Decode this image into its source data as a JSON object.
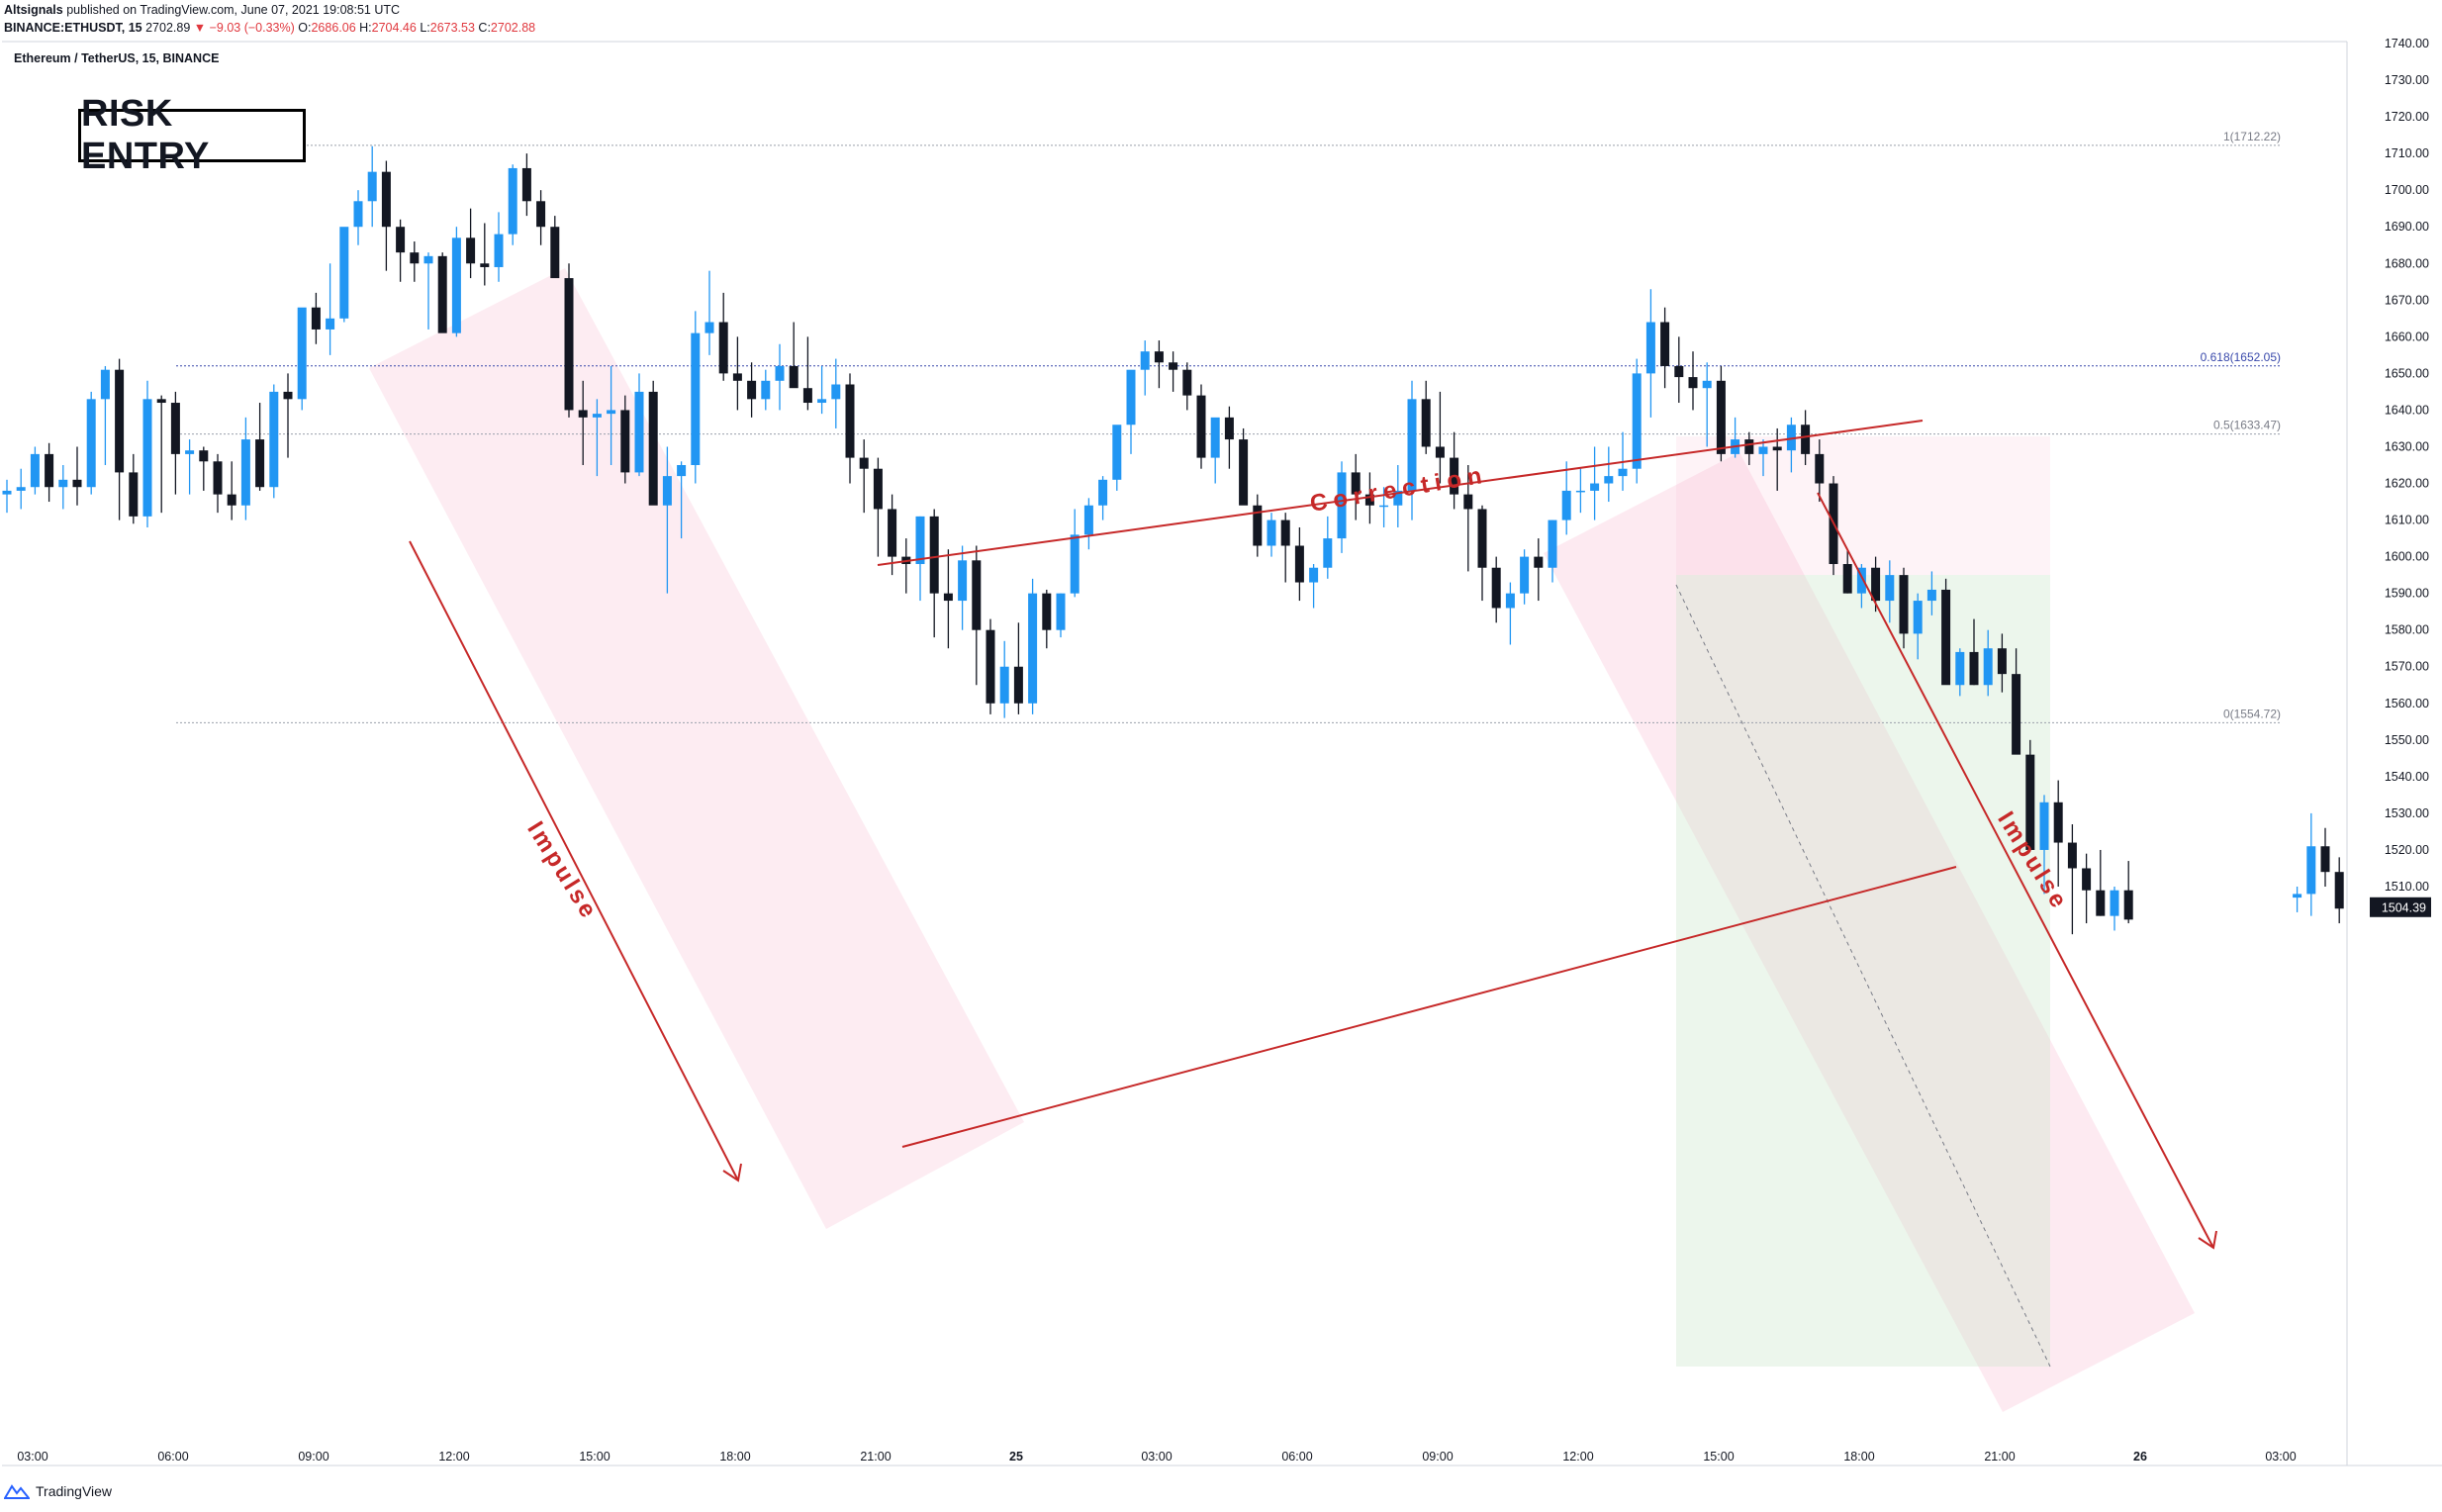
{
  "header": {
    "publisher": "Altsignals",
    "published_text": "published on TradingView.com, June 07, 2021 19:08:51 UTC",
    "symbol": "BINANCE:ETHUSDT, 15",
    "last": "2702.89",
    "change": "▼ −9.03 (−0.33%)",
    "o_label": "O:",
    "o_value": "2686.06",
    "h_label": "H:",
    "h_value": "2704.46",
    "l_label": "L:",
    "l_value": "2673.53",
    "c_label": "C:",
    "c_value": "2702.88"
  },
  "footer": {
    "brand": "TradingView"
  },
  "annotation": {
    "risk_entry": "RISK ENTRY"
  },
  "colors": {
    "up": "#2196f3",
    "down": "#131722",
    "line": "#c62828",
    "zone": "#f8bbd0",
    "target": "#c8e6c9"
  },
  "chart_data": {
    "type": "candlestick",
    "title": "Ethereum / TetherUS, 15, BINANCE",
    "y_ticks": [
      1510,
      1520,
      1530,
      1540,
      1550,
      1560,
      1570,
      1580,
      1590,
      1600,
      1610,
      1620,
      1630,
      1640,
      1650,
      1660,
      1670,
      1680,
      1690,
      1700,
      1710,
      1720,
      1730,
      1740
    ],
    "ylim": [
      1498,
      1743
    ],
    "x_ticks": [
      "03:00",
      "06:00",
      "09:00",
      "12:00",
      "15:00",
      "18:00",
      "21:00",
      "25",
      "03:00",
      "06:00",
      "09:00",
      "12:00",
      "15:00",
      "18:00",
      "21:00",
      "26",
      "03:00"
    ],
    "current_price": "1504.39",
    "fib_levels": [
      {
        "label": "1(1712.22)",
        "value": 1712.22
      },
      {
        "label": "0.618(1652.05)",
        "value": 1652.05
      },
      {
        "label": "0.5(1633.47)",
        "value": 1633.47
      },
      {
        "label": "0(1554.72)",
        "value": 1554.72
      }
    ],
    "annotations": [
      "Correction",
      "Impulse",
      "Impulse"
    ],
    "candles": [
      [
        1617,
        1621,
        1612,
        1618
      ],
      [
        1618,
        1624,
        1613,
        1619
      ],
      [
        1619,
        1630,
        1617,
        1628
      ],
      [
        1628,
        1631,
        1615,
        1619
      ],
      [
        1619,
        1625,
        1613,
        1621
      ],
      [
        1621,
        1630,
        1614,
        1619
      ],
      [
        1619,
        1645,
        1617,
        1643
      ],
      [
        1643,
        1652,
        1625,
        1651
      ],
      [
        1651,
        1654,
        1610,
        1623
      ],
      [
        1623,
        1628,
        1609,
        1611
      ],
      [
        1611,
        1648,
        1608,
        1643
      ],
      [
        1643,
        1644,
        1612,
        1642
      ],
      [
        1642,
        1645,
        1617,
        1628
      ],
      [
        1628,
        1632,
        1617,
        1629
      ],
      [
        1629,
        1630,
        1618,
        1626
      ],
      [
        1626,
        1628,
        1612,
        1617
      ],
      [
        1617,
        1626,
        1610,
        1614
      ],
      [
        1614,
        1638,
        1610,
        1632
      ],
      [
        1632,
        1642,
        1618,
        1619
      ],
      [
        1619,
        1647,
        1616,
        1645
      ],
      [
        1645,
        1650,
        1627,
        1643
      ],
      [
        1643,
        1664,
        1640,
        1668
      ],
      [
        1668,
        1672,
        1658,
        1662
      ],
      [
        1662,
        1680,
        1655,
        1665
      ],
      [
        1665,
        1688,
        1664,
        1690
      ],
      [
        1690,
        1700,
        1685,
        1697
      ],
      [
        1697,
        1712,
        1690,
        1705
      ],
      [
        1705,
        1708,
        1678,
        1690
      ],
      [
        1690,
        1692,
        1675,
        1683
      ],
      [
        1683,
        1686,
        1675,
        1680
      ],
      [
        1680,
        1683,
        1662,
        1682
      ],
      [
        1682,
        1683,
        1662,
        1661
      ],
      [
        1661,
        1690,
        1660,
        1687
      ],
      [
        1687,
        1695,
        1676,
        1680
      ],
      [
        1680,
        1691,
        1674,
        1679
      ],
      [
        1679,
        1694,
        1675,
        1688
      ],
      [
        1688,
        1707,
        1685,
        1706
      ],
      [
        1706,
        1710,
        1693,
        1697
      ],
      [
        1697,
        1700,
        1685,
        1690
      ],
      [
        1690,
        1693,
        1677,
        1676
      ],
      [
        1676,
        1680,
        1638,
        1640
      ],
      [
        1640,
        1648,
        1625,
        1638
      ],
      [
        1638,
        1643,
        1622,
        1639
      ],
      [
        1639,
        1652,
        1625,
        1640
      ],
      [
        1640,
        1644,
        1620,
        1623
      ],
      [
        1623,
        1650,
        1622,
        1645
      ],
      [
        1645,
        1648,
        1618,
        1614
      ],
      [
        1614,
        1630,
        1590,
        1622
      ],
      [
        1622,
        1626,
        1605,
        1625
      ],
      [
        1625,
        1667,
        1620,
        1661
      ],
      [
        1661,
        1678,
        1655,
        1664
      ],
      [
        1664,
        1672,
        1648,
        1650
      ],
      [
        1650,
        1660,
        1640,
        1648
      ],
      [
        1648,
        1653,
        1638,
        1643
      ],
      [
        1643,
        1651,
        1640,
        1648
      ],
      [
        1648,
        1658,
        1640,
        1652
      ],
      [
        1652,
        1664,
        1647,
        1646
      ],
      [
        1646,
        1660,
        1640,
        1642
      ],
      [
        1642,
        1652,
        1639,
        1643
      ],
      [
        1643,
        1654,
        1635,
        1647
      ],
      [
        1647,
        1650,
        1620,
        1627
      ],
      [
        1627,
        1632,
        1612,
        1624
      ],
      [
        1624,
        1627,
        1600,
        1613
      ],
      [
        1613,
        1617,
        1595,
        1600
      ],
      [
        1600,
        1605,
        1590,
        1598
      ],
      [
        1598,
        1611,
        1588,
        1611
      ],
      [
        1611,
        1613,
        1578,
        1590
      ],
      [
        1590,
        1602,
        1575,
        1588
      ],
      [
        1588,
        1603,
        1580,
        1599
      ],
      [
        1599,
        1603,
        1565,
        1580
      ],
      [
        1580,
        1583,
        1557,
        1560
      ],
      [
        1560,
        1577,
        1556,
        1570
      ],
      [
        1570,
        1582,
        1557,
        1560
      ],
      [
        1560,
        1594,
        1557,
        1590
      ],
      [
        1590,
        1591,
        1575,
        1580
      ],
      [
        1580,
        1590,
        1578,
        1590
      ],
      [
        1590,
        1613,
        1589,
        1606
      ],
      [
        1606,
        1616,
        1602,
        1614
      ],
      [
        1614,
        1622,
        1610,
        1621
      ],
      [
        1621,
        1634,
        1618,
        1636
      ],
      [
        1636,
        1650,
        1628,
        1651
      ],
      [
        1651,
        1659,
        1644,
        1656
      ],
      [
        1656,
        1659,
        1646,
        1653
      ],
      [
        1653,
        1656,
        1645,
        1651
      ],
      [
        1651,
        1653,
        1640,
        1644
      ],
      [
        1644,
        1647,
        1624,
        1627
      ],
      [
        1627,
        1632,
        1620,
        1638
      ],
      [
        1638,
        1641,
        1624,
        1632
      ],
      [
        1632,
        1635,
        1615,
        1614
      ],
      [
        1614,
        1617,
        1600,
        1603
      ],
      [
        1603,
        1612,
        1600,
        1610
      ],
      [
        1610,
        1612,
        1593,
        1603
      ],
      [
        1603,
        1608,
        1588,
        1593
      ],
      [
        1593,
        1598,
        1586,
        1597
      ],
      [
        1597,
        1611,
        1594,
        1605
      ],
      [
        1605,
        1626,
        1601,
        1623
      ],
      [
        1623,
        1628,
        1610,
        1617
      ],
      [
        1617,
        1623,
        1609,
        1614
      ],
      [
        1614,
        1619,
        1608,
        1614
      ],
      [
        1614,
        1625,
        1608,
        1618
      ],
      [
        1618,
        1648,
        1610,
        1643
      ],
      [
        1643,
        1648,
        1628,
        1630
      ],
      [
        1630,
        1645,
        1620,
        1627
      ],
      [
        1627,
        1634,
        1613,
        1617
      ],
      [
        1617,
        1625,
        1596,
        1613
      ],
      [
        1613,
        1614,
        1588,
        1597
      ],
      [
        1597,
        1600,
        1582,
        1586
      ],
      [
        1586,
        1593,
        1576,
        1590
      ],
      [
        1590,
        1602,
        1587,
        1600
      ],
      [
        1600,
        1605,
        1588,
        1597
      ],
      [
        1597,
        1610,
        1593,
        1610
      ],
      [
        1610,
        1626,
        1606,
        1618
      ],
      [
        1618,
        1624,
        1612,
        1618
      ],
      [
        1618,
        1630,
        1610,
        1620
      ],
      [
        1620,
        1630,
        1615,
        1622
      ],
      [
        1622,
        1634,
        1618,
        1624
      ],
      [
        1624,
        1654,
        1620,
        1650
      ],
      [
        1650,
        1673,
        1638,
        1664
      ],
      [
        1664,
        1668,
        1646,
        1652
      ],
      [
        1652,
        1660,
        1642,
        1649
      ],
      [
        1649,
        1656,
        1640,
        1646
      ],
      [
        1646,
        1653,
        1630,
        1648
      ],
      [
        1648,
        1652,
        1626,
        1628
      ],
      [
        1628,
        1638,
        1627,
        1632
      ],
      [
        1632,
        1634,
        1625,
        1628
      ],
      [
        1628,
        1632,
        1622,
        1630
      ],
      [
        1630,
        1635,
        1618,
        1629
      ],
      [
        1629,
        1638,
        1623,
        1636
      ],
      [
        1636,
        1640,
        1625,
        1628
      ],
      [
        1628,
        1632,
        1615,
        1620
      ],
      [
        1620,
        1622,
        1595,
        1598
      ],
      [
        1598,
        1602,
        1590,
        1590
      ],
      [
        1590,
        1598,
        1586,
        1597
      ],
      [
        1597,
        1600,
        1585,
        1588
      ],
      [
        1588,
        1599,
        1582,
        1595
      ],
      [
        1595,
        1597,
        1575,
        1579
      ],
      [
        1579,
        1590,
        1572,
        1588
      ],
      [
        1588,
        1596,
        1584,
        1591
      ],
      [
        1591,
        1594,
        1570,
        1565
      ],
      [
        1565,
        1575,
        1562,
        1574
      ],
      [
        1574,
        1583,
        1565,
        1565
      ],
      [
        1565,
        1580,
        1562,
        1575
      ],
      [
        1575,
        1579,
        1563,
        1568
      ],
      [
        1568,
        1575,
        1552,
        1546
      ],
      [
        1546,
        1550,
        1520,
        1520
      ],
      [
        1520,
        1535,
        1508,
        1533
      ],
      [
        1533,
        1539,
        1510,
        1522
      ],
      [
        1522,
        1527,
        1497,
        1515
      ],
      [
        1515,
        1519,
        1500,
        1509
      ],
      [
        1509,
        1520,
        1502,
        1502
      ],
      [
        1502,
        1510,
        1498,
        1509
      ],
      [
        1509,
        1517,
        1500,
        1501
      ],
      null,
      null,
      null,
      null,
      null,
      null,
      null,
      null,
      null,
      null,
      null,
      [
        1507,
        1510,
        1503,
        1508
      ],
      [
        1508,
        1530,
        1502,
        1521
      ],
      [
        1521,
        1526,
        1510,
        1514
      ],
      [
        1514,
        1518,
        1500,
        1504
      ]
    ]
  }
}
